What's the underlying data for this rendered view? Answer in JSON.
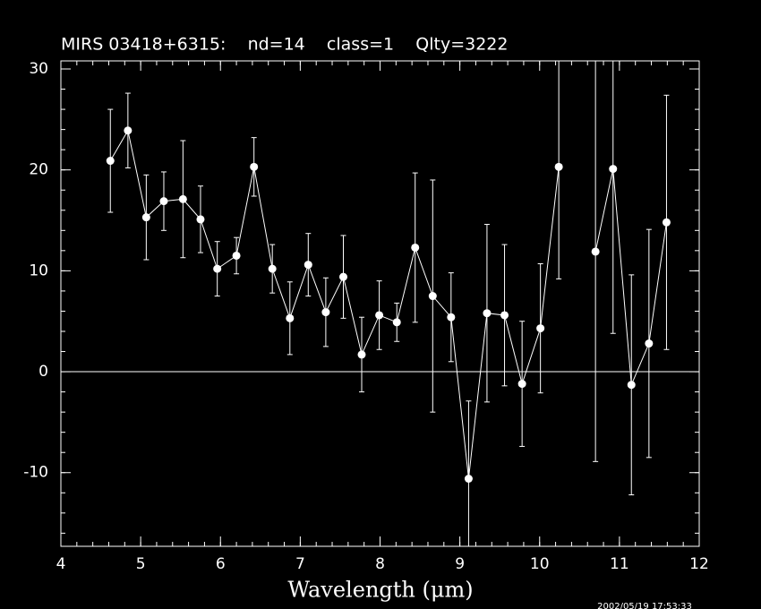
{
  "chart_data": {
    "type": "errorbar",
    "title": "MIRS 03418+6315:    nd=14    class=1    Qlty=3222",
    "x_label": "Wavelength (μm)",
    "timestamp": "2002/05/19 17:53:33",
    "x": [
      4.62,
      4.84,
      5.07,
      5.29,
      5.53,
      5.75,
      5.96,
      6.2,
      6.42,
      6.65,
      6.87,
      7.1,
      7.32,
      7.54,
      7.77,
      7.99,
      8.21,
      8.44,
      8.66,
      8.89,
      9.11,
      9.34,
      9.56,
      9.78,
      10.01,
      10.24,
      10.46,
      10.7,
      10.92,
      11.15,
      11.37,
      11.59
    ],
    "values": [
      20.9,
      23.9,
      15.3,
      16.9,
      17.1,
      15.1,
      10.2,
      11.5,
      20.3,
      10.2,
      5.3,
      10.6,
      5.9,
      9.4,
      1.7,
      5.6,
      4.9,
      12.3,
      7.5,
      5.4,
      -10.6,
      5.8,
      5.6,
      -1.2,
      4.3,
      20.3,
      null,
      11.9,
      20.1,
      -1.3,
      2.8,
      14.8
    ],
    "errors": [
      5.1,
      3.7,
      4.2,
      2.9,
      5.8,
      3.3,
      2.7,
      1.8,
      2.9,
      2.4,
      3.6,
      3.1,
      3.4,
      4.1,
      3.7,
      3.4,
      1.9,
      7.4,
      11.5,
      4.4,
      7.7,
      8.8,
      7.0,
      6.2,
      6.4,
      11.1,
      null,
      20.8,
      16.3,
      10.9,
      11.3,
      12.6
    ],
    "color": "#ffffff",
    "xlim": [
      4,
      12
    ],
    "ylim": [
      -17.3,
      30.8
    ],
    "xticks": [
      4,
      5,
      6,
      7,
      8,
      9,
      10,
      11,
      12
    ],
    "yticks": [
      -10,
      0,
      10,
      20,
      30
    ],
    "xminor_step": 0.2,
    "yminor_step": 2,
    "hline": 0
  }
}
